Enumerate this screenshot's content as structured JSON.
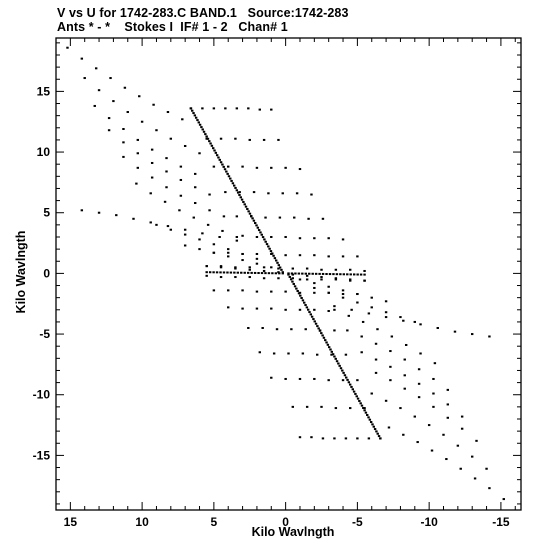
{
  "chart_data": {
    "type": "scatter",
    "title": "V vs U for 1742-283.C BAND.1   Source:1742-283",
    "subtitle": "Ants * - *    Stokes I  IF# 1 - 2   Chan# 1",
    "xlabel": "Kilo Wavlngth",
    "ylabel": "Kilo Wavlngth",
    "xlim": [
      16.0,
      -16.4
    ],
    "ylim": [
      -19.5,
      19.4
    ],
    "x_inverted": true,
    "x_ticks": [
      15,
      10,
      5,
      0,
      -5,
      -10,
      -15
    ],
    "x_tick_labels": [
      "15",
      "10",
      "5",
      "0",
      "-5",
      "-10",
      "-15"
    ],
    "y_ticks": [
      15,
      10,
      5,
      0,
      -5,
      -10,
      -15
    ],
    "y_tick_labels": [
      "15",
      "10",
      "5",
      "0",
      "-5",
      "-10",
      "-15"
    ],
    "grid": false,
    "legend": "none",
    "marker_color": "#000000",
    "symmetric": true,
    "tracks_description": "Visibility sampling tracks; each point (u,v) also appears at (-u,-v)",
    "tracks": [
      {
        "u": [
          15.2,
          14.2,
          13.2,
          12.2,
          11.2,
          10.2,
          9.2,
          8.2,
          7.2
        ],
        "v": [
          18.6,
          17.7,
          16.9,
          16.1,
          15.3,
          14.6,
          13.9,
          13.3,
          12.7
        ]
      },
      {
        "u": [
          14.0,
          13.0,
          12.0,
          11.0,
          10.0,
          9.0,
          8.0,
          7.0,
          6.0
        ],
        "v": [
          16.1,
          15.1,
          14.2,
          13.3,
          12.5,
          11.8,
          11.1,
          10.5,
          9.9
        ]
      },
      {
        "u": [
          13.3,
          12.3,
          11.3,
          10.3,
          9.3,
          8.3,
          7.3,
          6.3
        ],
        "v": [
          13.8,
          12.8,
          11.9,
          11.0,
          10.2,
          9.5,
          8.8,
          8.2
        ]
      },
      {
        "u": [
          12.3,
          11.3,
          10.3,
          9.3,
          8.3,
          7.3,
          6.3,
          5.3
        ],
        "v": [
          11.8,
          10.8,
          9.9,
          9.1,
          8.4,
          7.7,
          7.1,
          6.5
        ]
      },
      {
        "u": [
          11.3,
          10.3,
          9.3,
          8.3,
          7.3,
          6.3,
          5.3,
          4.3
        ],
        "v": [
          9.6,
          8.7,
          7.9,
          7.1,
          6.4,
          5.8,
          5.2,
          4.7
        ]
      },
      {
        "u": [
          10.4,
          9.4,
          8.4,
          7.4,
          6.4,
          5.4,
          4.4,
          3.4
        ],
        "v": [
          7.4,
          6.6,
          5.9,
          5.2,
          4.6,
          4.0,
          3.5,
          3.0
        ]
      },
      {
        "u": [
          14.2,
          13.0,
          11.8,
          10.6,
          9.4,
          8.2,
          7.0,
          5.8,
          4.6,
          3.4
        ],
        "v": [
          5.2,
          5.0,
          4.8,
          4.5,
          4.2,
          3.9,
          3.6,
          3.3,
          3.0,
          2.7
        ]
      },
      {
        "u": [
          9.0,
          8.0,
          7.0,
          6.0,
          5.0,
          4.0,
          3.0,
          2.0
        ],
        "v": [
          4.0,
          3.6,
          3.2,
          2.8,
          2.4,
          2.0,
          1.6,
          1.2
        ]
      },
      {
        "u": [
          7.0,
          6.0,
          5.0,
          4.0,
          3.0,
          2.0,
          1.0
        ],
        "v": [
          2.3,
          2.0,
          1.7,
          1.4,
          1.1,
          0.8,
          0.5
        ]
      },
      {
        "u": [
          5.5,
          4.5,
          3.5,
          2.5,
          1.5,
          0.5
        ],
        "v": [
          0.6,
          0.5,
          0.4,
          0.3,
          0.2,
          0.1
        ]
      },
      {
        "u": [
          6.6,
          5.8,
          5.0,
          4.2,
          3.4,
          2.6,
          1.8,
          1.0
        ],
        "v": [
          13.6,
          13.6,
          13.6,
          13.6,
          13.6,
          13.6,
          13.5,
          13.5
        ]
      },
      {
        "u": [
          5.5,
          4.5,
          3.5,
          2.5,
          1.5,
          0.5
        ],
        "v": [
          11.1,
          11.1,
          11.1,
          11.0,
          11.0,
          11.0
        ]
      },
      {
        "u": [
          5.0,
          4.0,
          3.0,
          2.0,
          1.0,
          0.0,
          -1.0
        ],
        "v": [
          8.8,
          8.8,
          8.8,
          8.7,
          8.7,
          8.7,
          8.6
        ]
      },
      {
        "u": [
          4.2,
          3.2,
          2.2,
          1.2,
          0.2,
          -0.8,
          -1.8
        ],
        "v": [
          6.7,
          6.7,
          6.7,
          6.6,
          6.6,
          6.6,
          6.5
        ]
      },
      {
        "u": [
          3.4,
          2.4,
          1.4,
          0.4,
          -0.6,
          -1.6,
          -2.6
        ],
        "v": [
          4.7,
          4.7,
          4.6,
          4.6,
          4.6,
          4.5,
          4.5
        ]
      },
      {
        "u": [
          3.0,
          2.0,
          1.0,
          0.0,
          -1.0,
          -2.0,
          -3.0,
          -4.0
        ],
        "v": [
          3.1,
          3.0,
          3.0,
          3.0,
          2.9,
          2.9,
          2.9,
          2.8
        ]
      },
      {
        "u": [
          5.0,
          4.0,
          3.0,
          2.0,
          1.0,
          0.0,
          -1.0,
          -2.0,
          -3.0,
          -4.0,
          -5.0
        ],
        "v": [
          1.7,
          1.7,
          1.6,
          1.6,
          1.6,
          1.5,
          1.5,
          1.5,
          1.4,
          1.4,
          1.4
        ]
      },
      {
        "u": [
          5.5,
          4.5,
          3.5,
          2.5,
          1.5,
          0.5,
          -0.5,
          -1.5,
          -2.5,
          -3.5,
          -4.5,
          -5.5
        ],
        "v": [
          0.6,
          0.6,
          0.5,
          0.5,
          0.5,
          0.4,
          0.4,
          0.4,
          0.3,
          0.3,
          0.3,
          0.2
        ]
      }
    ],
    "baseline_line": {
      "u": [
        6.6,
        0.2
      ],
      "v": [
        13.6,
        0.1
      ]
    },
    "axis_line": {
      "u": [
        5.5,
        0.2
      ],
      "v": [
        0.1,
        0.0
      ]
    }
  }
}
